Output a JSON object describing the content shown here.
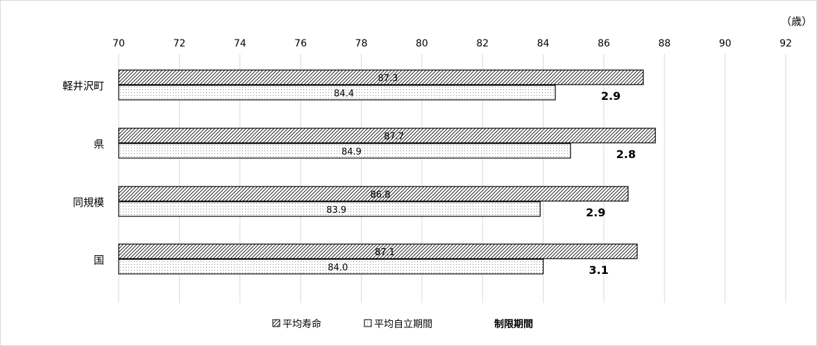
{
  "chart_data": {
    "type": "bar",
    "orientation": "horizontal",
    "unit_label": "（歳）",
    "xlim": [
      70,
      92
    ],
    "x_ticks": [
      70,
      72,
      74,
      76,
      78,
      80,
      82,
      84,
      86,
      88,
      90,
      92
    ],
    "grid": true,
    "categories": [
      "軽井沢町",
      "県",
      "同規模",
      "国"
    ],
    "series": [
      {
        "name": "平均寿命",
        "pattern": "hatch-diagonal",
        "values": [
          87.3,
          87.7,
          86.8,
          87.1
        ]
      },
      {
        "name": "平均自立期間",
        "pattern": "dots",
        "values": [
          84.4,
          84.9,
          83.9,
          84.0
        ]
      }
    ],
    "difference": {
      "name": "制限期間",
      "values": [
        "2.9",
        "2.8",
        "2.9",
        "3.1"
      ]
    },
    "legend_position": "bottom-center",
    "legend_items": [
      "平均寿命",
      "平均自立期間",
      "制限期間"
    ]
  }
}
